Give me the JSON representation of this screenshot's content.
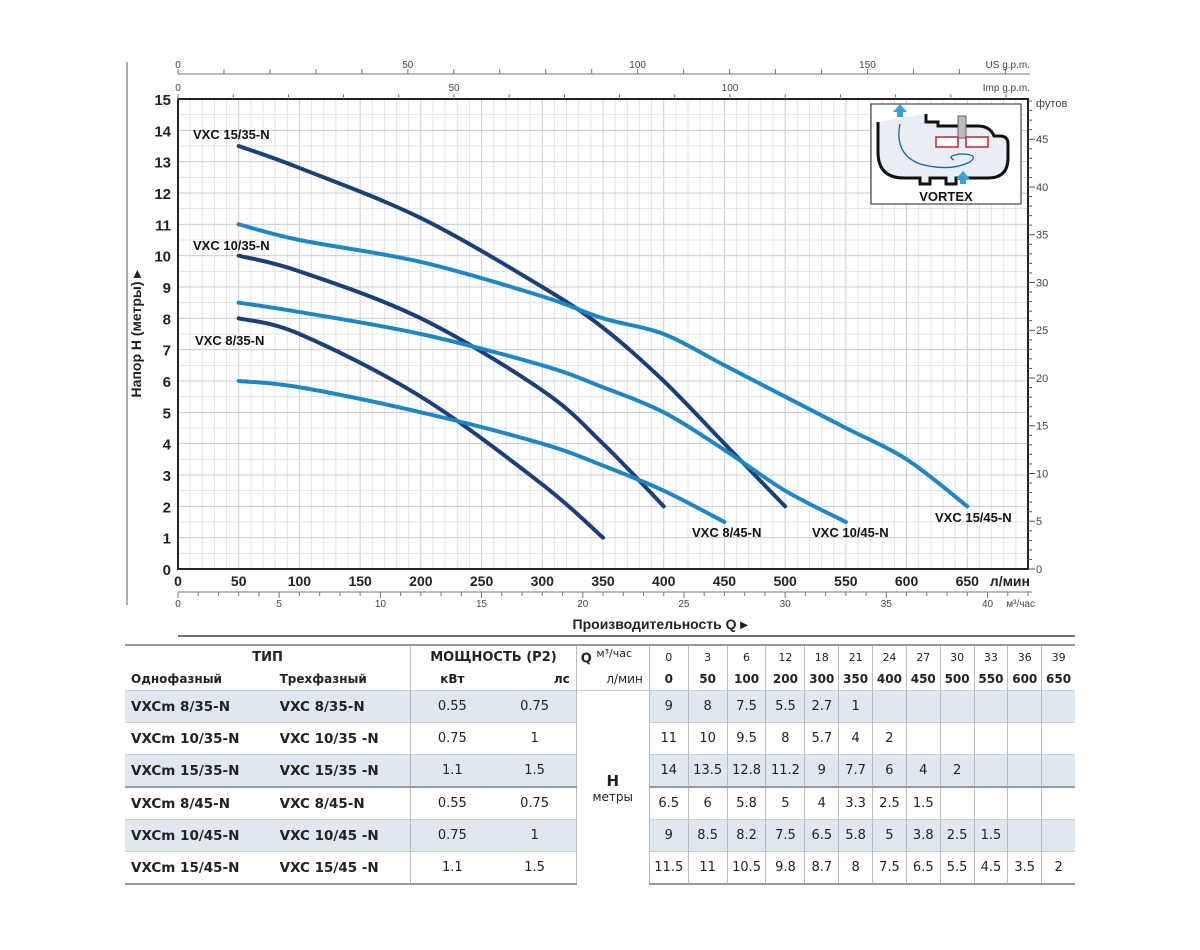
{
  "chart_data": {
    "type": "line",
    "xlabel": "Производительность  Q",
    "ylabel": "Напор  H (метры)",
    "x_unit": "л/мин",
    "xlim": [
      0,
      700
    ],
    "ylim": [
      0,
      15
    ],
    "x_ticks": [
      0,
      50,
      100,
      150,
      200,
      250,
      300,
      350,
      400,
      450,
      500,
      550,
      600,
      650
    ],
    "y_ticks": [
      0,
      1,
      2,
      3,
      4,
      5,
      6,
      7,
      8,
      9,
      10,
      11,
      12,
      13,
      14,
      15
    ],
    "secondary_axes": {
      "us_gpm": {
        "label": "US g.p.m.",
        "ticks": [
          0,
          50,
          100,
          150
        ]
      },
      "imp_gpm": {
        "label": "Imp g.p.m.",
        "ticks": [
          0,
          50,
          100
        ]
      },
      "m3h": {
        "label": "м³/час",
        "ticks": [
          0,
          5,
          10,
          15,
          20,
          25,
          30,
          35,
          40
        ]
      },
      "feet": {
        "label": "футов",
        "ticks": [
          0,
          5,
          10,
          15,
          20,
          25,
          30,
          35,
          40,
          45
        ]
      }
    },
    "grid": true,
    "series": [
      {
        "name": "VXC 15/35-N",
        "color": "#1b3f78",
        "x": [
          50,
          100,
          200,
          300,
          350,
          400,
          450,
          500
        ],
        "y": [
          13.5,
          12.8,
          11.2,
          9,
          7.7,
          6,
          4,
          2
        ]
      },
      {
        "name": "VXC 10/35-N",
        "color": "#1b3f78",
        "x": [
          50,
          100,
          200,
          300,
          350,
          400
        ],
        "y": [
          10,
          9.5,
          8,
          5.7,
          4,
          2
        ]
      },
      {
        "name": "VXC  8/35-N",
        "color": "#1b3f78",
        "x": [
          50,
          100,
          200,
          300,
          350
        ],
        "y": [
          8,
          7.5,
          5.5,
          2.7,
          1
        ]
      },
      {
        "name": "VXC  8/45-N",
        "color": "#1f86c6",
        "x": [
          50,
          100,
          200,
          300,
          350,
          400,
          450
        ],
        "y": [
          6,
          5.8,
          5,
          4,
          3.3,
          2.5,
          1.5
        ]
      },
      {
        "name": "VXC 10/45-N",
        "color": "#1f86c6",
        "x": [
          50,
          100,
          200,
          300,
          350,
          400,
          450,
          500,
          550
        ],
        "y": [
          8.5,
          8.2,
          7.5,
          6.5,
          5.8,
          5,
          3.8,
          2.5,
          1.5
        ]
      },
      {
        "name": "VXC 15/45-N",
        "color": "#1f86c6",
        "x": [
          50,
          100,
          200,
          300,
          350,
          400,
          450,
          500,
          550,
          600,
          650
        ],
        "y": [
          11,
          10.5,
          9.8,
          8.7,
          8,
          7.5,
          6.5,
          5.5,
          4.5,
          3.5,
          2
        ]
      }
    ],
    "inset_label": "VORTEX"
  },
  "table": {
    "type_header": "ТИП",
    "power_header": "МОЩНОСТЬ (P2)",
    "q_label": "Q",
    "q_unit_m3": "м³/час",
    "q_unit_lmin": "л/мин",
    "single_phase": "Однофазный",
    "three_phase": "Трехфазный",
    "kw": "кВт",
    "hp": "лс",
    "h_label": "H",
    "h_unit": "метры",
    "q_m3h": [
      "0",
      "3",
      "6",
      "12",
      "18",
      "21",
      "24",
      "27",
      "30",
      "33",
      "36",
      "39"
    ],
    "q_lmin": [
      "0",
      "50",
      "100",
      "200",
      "300",
      "350",
      "400",
      "450",
      "500",
      "550",
      "600",
      "650"
    ],
    "rows": [
      {
        "single": "VXCm  8/35-N",
        "three": "VXC  8/35-N",
        "kw": "0.55",
        "hp": "0.75",
        "h": [
          "9",
          "8",
          "7.5",
          "5.5",
          "2.7",
          "1",
          "",
          "",
          "",
          "",
          "",
          ""
        ]
      },
      {
        "single": "VXCm 10/35-N",
        "three": "VXC 10/35 -N",
        "kw": "0.75",
        "hp": "1",
        "h": [
          "11",
          "10",
          "9.5",
          "8",
          "5.7",
          "4",
          "2",
          "",
          "",
          "",
          "",
          ""
        ]
      },
      {
        "single": "VXCm 15/35-N",
        "three": "VXC 15/35 -N",
        "kw": "1.1",
        "hp": "1.5",
        "h": [
          "14",
          "13.5",
          "12.8",
          "11.2",
          "9",
          "7.7",
          "6",
          "4",
          "2",
          "",
          "",
          ""
        ]
      },
      {
        "single": "VXCm  8/45-N",
        "three": "VXC  8/45-N",
        "kw": "0.55",
        "hp": "0.75",
        "h": [
          "6.5",
          "6",
          "5.8",
          "5",
          "4",
          "3.3",
          "2.5",
          "1.5",
          "",
          "",
          "",
          ""
        ]
      },
      {
        "single": "VXCm 10/45-N",
        "three": "VXC 10/45 -N",
        "kw": "0.75",
        "hp": "1",
        "h": [
          "9",
          "8.5",
          "8.2",
          "7.5",
          "6.5",
          "5.8",
          "5",
          "3.8",
          "2.5",
          "1.5",
          "",
          ""
        ]
      },
      {
        "single": "VXCm 15/45-N",
        "three": "VXC 15/45 -N",
        "kw": "1.1",
        "hp": "1.5",
        "h": [
          "11.5",
          "11",
          "10.5",
          "9.8",
          "8.7",
          "8",
          "7.5",
          "6.5",
          "5.5",
          "4.5",
          "3.5",
          "2"
        ]
      }
    ]
  }
}
